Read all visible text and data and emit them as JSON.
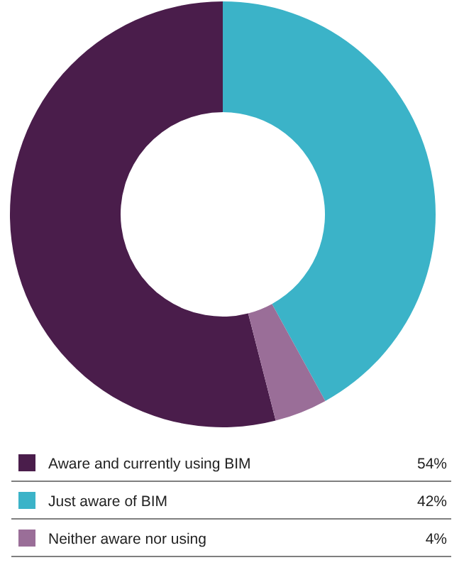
{
  "chart_data": {
    "type": "donut",
    "categories": [
      "Aware and currently using BIM",
      "Just aware of BIM",
      "Neither aware nor using"
    ],
    "values": [
      54,
      42,
      4
    ],
    "colors": [
      "#4a1d4b",
      "#3bb3c8",
      "#9a6e98"
    ],
    "value_labels": [
      "54%",
      "42%",
      "4%"
    ],
    "legend": "bottom"
  }
}
